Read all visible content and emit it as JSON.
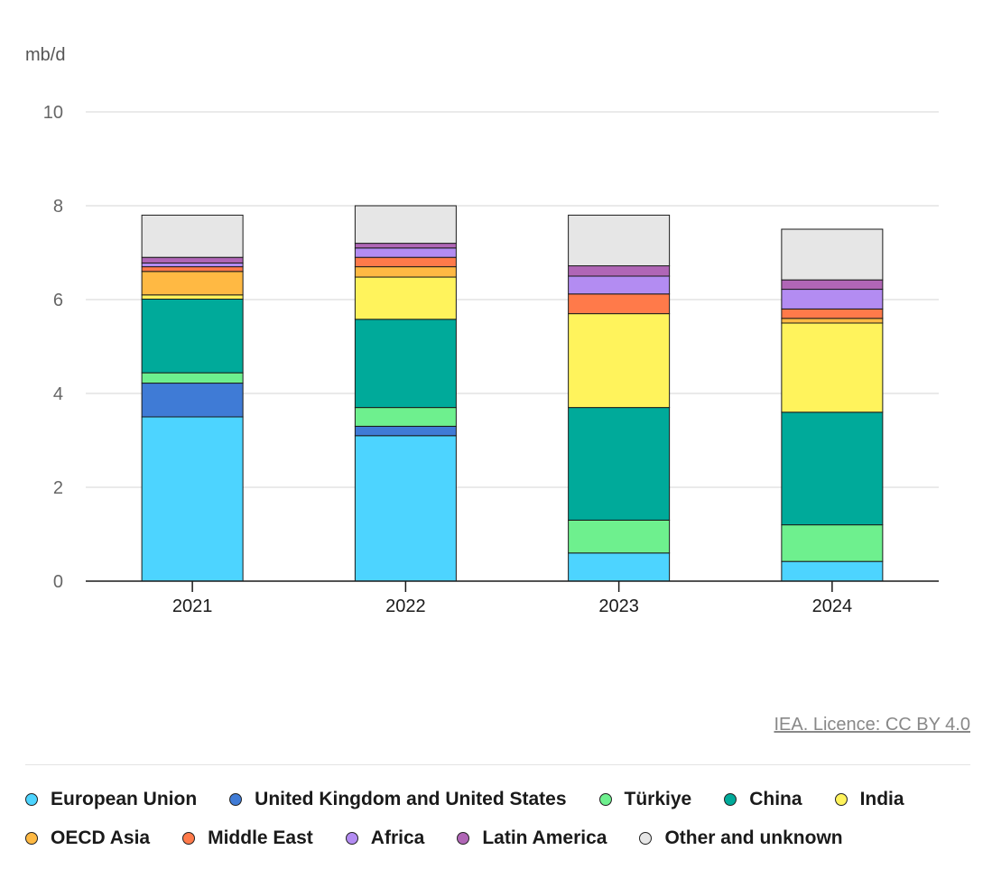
{
  "chart_data": {
    "type": "bar",
    "stacked": true,
    "ylabel": "mb/d",
    "ylim": [
      0,
      10
    ],
    "yticks": [
      0,
      2,
      4,
      6,
      8,
      10
    ],
    "grid": true,
    "legend_placement": "bottom",
    "categories": [
      "2021",
      "2022",
      "2023",
      "2024"
    ],
    "series": [
      {
        "name": "European Union",
        "color": "#4dd4ff",
        "values": [
          3.5,
          3.1,
          0.6,
          0.42
        ]
      },
      {
        "name": "United Kingdom and United States",
        "color": "#3f7bd6",
        "values": [
          0.72,
          0.2,
          0,
          0
        ]
      },
      {
        "name": "Türkiye",
        "color": "#6ef08e",
        "values": [
          0.22,
          0.4,
          0.7,
          0.78
        ]
      },
      {
        "name": "China",
        "color": "#00aa9a",
        "values": [
          1.57,
          1.88,
          2.4,
          2.4
        ]
      },
      {
        "name": "India",
        "color": "#fff35c",
        "values": [
          0.09,
          0.9,
          2.0,
          1.9
        ]
      },
      {
        "name": "OECD Asia",
        "color": "#ffb943",
        "values": [
          0.5,
          0.22,
          0,
          0.1
        ]
      },
      {
        "name": "Middle East",
        "color": "#ff7a4a",
        "values": [
          0.1,
          0.2,
          0.42,
          0.2
        ]
      },
      {
        "name": "Africa",
        "color": "#b38cf2",
        "values": [
          0.08,
          0.2,
          0.38,
          0.42
        ]
      },
      {
        "name": "Latin America",
        "color": "#b066b6",
        "values": [
          0.12,
          0.1,
          0.22,
          0.2
        ]
      },
      {
        "name": "Other and unknown",
        "color": "#e6e6e6",
        "values": [
          0.9,
          0.8,
          1.08,
          1.08
        ]
      }
    ]
  },
  "credit": "IEA. Licence: CC BY 4.0"
}
